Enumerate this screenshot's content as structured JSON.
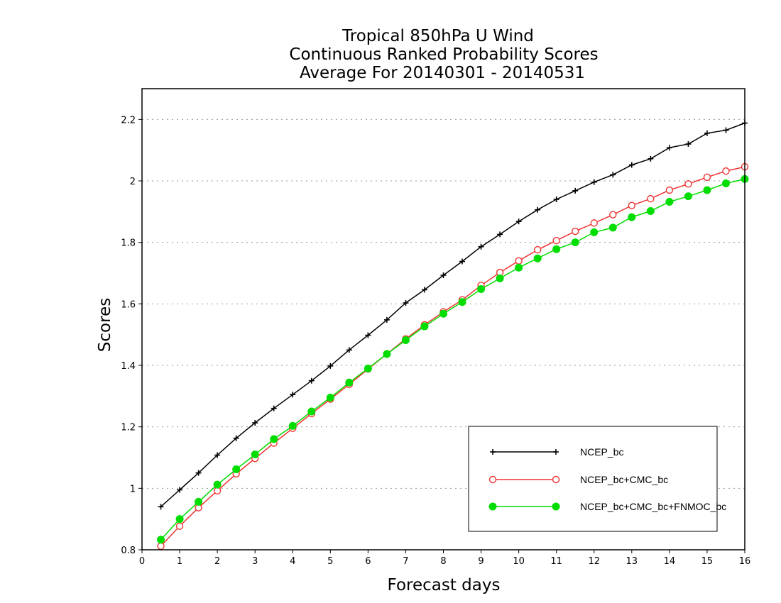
{
  "chart_data": {
    "type": "line",
    "title": [
      "Tropical 850hPa U Wind",
      "Continuous Ranked Probability Scores",
      "Average For 20140301 - 20140531"
    ],
    "xlabel": "Forecast days",
    "ylabel": "Scores",
    "xlim": [
      0,
      16
    ],
    "ylim": [
      0.8,
      2.3
    ],
    "xticks": [
      "0",
      "1",
      "2",
      "3",
      "4",
      "5",
      "6",
      "7",
      "8",
      "9",
      "10",
      "11",
      "12",
      "13",
      "14",
      "15",
      "16"
    ],
    "yticks": [
      "0.8",
      "1",
      "1.2",
      "1.4",
      "1.6",
      "1.8",
      "2",
      "2.2"
    ],
    "grid": "horizontal dotted",
    "legend_position": "bottom-right",
    "x": [
      0.5,
      1,
      1.5,
      2,
      2.5,
      3,
      3.5,
      4,
      4.5,
      5,
      5.5,
      6,
      6.5,
      7,
      7.5,
      8,
      8.5,
      9,
      9.5,
      10,
      10.5,
      11,
      11.5,
      12,
      12.5,
      13,
      13.5,
      14,
      14.5,
      15,
      15.5,
      16
    ],
    "series": [
      {
        "name": "NCEP_bc",
        "color": "#000000",
        "marker": "plus",
        "values": [
          0.94,
          0.995,
          1.05,
          1.108,
          1.163,
          1.213,
          1.26,
          1.305,
          1.35,
          1.398,
          1.45,
          1.498,
          1.548,
          1.603,
          1.646,
          1.693,
          1.738,
          1.786,
          1.826,
          1.868,
          1.906,
          1.94,
          1.968,
          1.996,
          2.02,
          2.052,
          2.072,
          2.108,
          2.12,
          2.155,
          2.165,
          2.188
        ]
      },
      {
        "name": "NCEP_bc+CMC_bc",
        "color": "#ee3333",
        "marker": "open-circle",
        "values": [
          0.812,
          0.877,
          0.937,
          0.992,
          1.047,
          1.097,
          1.147,
          1.195,
          1.243,
          1.29,
          1.338,
          1.388,
          1.437,
          1.486,
          1.532,
          1.574,
          1.613,
          1.66,
          1.702,
          1.74,
          1.776,
          1.806,
          1.836,
          1.863,
          1.89,
          1.92,
          1.942,
          1.97,
          1.99,
          2.012,
          2.032,
          2.046
        ]
      },
      {
        "name": "NCEP_bc+CMC_bc+FNMOC_bc",
        "color": "#00dd00",
        "marker": "filled-circle",
        "values": [
          0.833,
          0.9,
          0.956,
          1.012,
          1.062,
          1.11,
          1.16,
          1.203,
          1.25,
          1.295,
          1.344,
          1.39,
          1.437,
          1.482,
          1.527,
          1.568,
          1.606,
          1.648,
          1.683,
          1.718,
          1.748,
          1.778,
          1.8,
          1.833,
          1.848,
          1.882,
          1.902,
          1.932,
          1.95,
          1.97,
          1.992,
          2.006
        ]
      }
    ]
  }
}
